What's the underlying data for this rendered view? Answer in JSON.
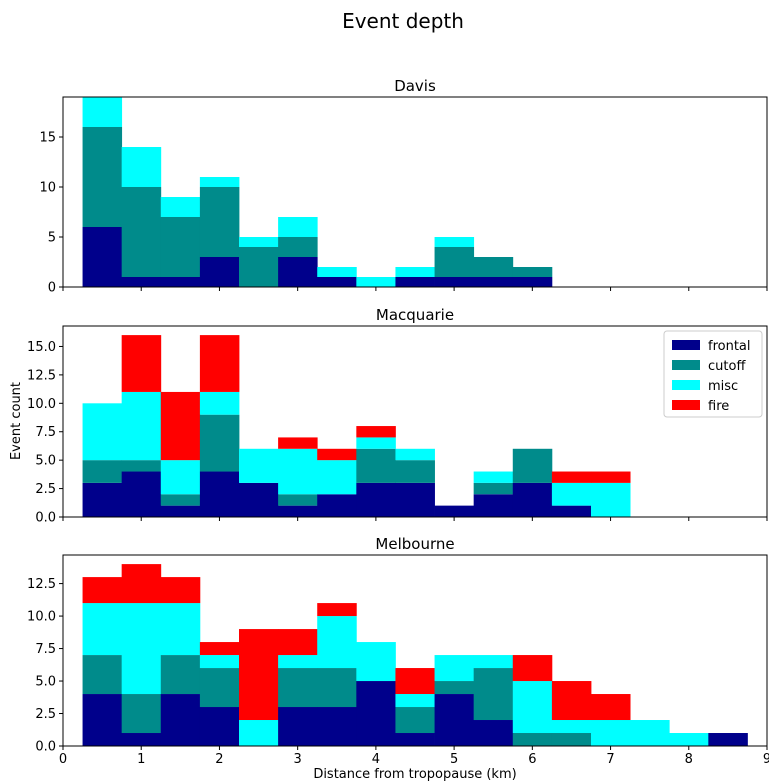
{
  "figure": {
    "suptitle": "Event depth",
    "xlabel": "Distance from tropopause (km)",
    "ylabel": "Event count"
  },
  "colors": {
    "frontal": "#00008b",
    "cutoff": "#008b8b",
    "misc": "#00ffff",
    "fire": "#ff0000"
  },
  "chart_data": [
    {
      "type": "bar",
      "stacked": true,
      "title": "Davis",
      "bin_edges": [
        0.25,
        0.75,
        1.25,
        1.75,
        2.25,
        2.75,
        3.25,
        3.75,
        4.25,
        4.75,
        5.25,
        5.75,
        6.25
      ],
      "xlim": [
        0,
        9
      ],
      "ylim": [
        0,
        19
      ],
      "xticks": [
        0,
        1,
        2,
        3,
        4,
        5,
        6,
        7,
        8,
        9
      ],
      "xtick_labels": [],
      "yticks": [
        0,
        5,
        10,
        15
      ],
      "ytick_labels": [
        "0",
        "5",
        "10",
        "15"
      ],
      "legend": false,
      "series": [
        {
          "key": "frontal",
          "values": [
            6,
            1,
            1,
            3,
            0,
            3,
            1,
            0,
            1,
            1,
            1,
            1
          ]
        },
        {
          "key": "cutoff",
          "values": [
            10,
            9,
            6,
            7,
            4,
            2,
            0,
            0,
            0,
            3,
            2,
            1
          ]
        },
        {
          "key": "misc",
          "values": [
            3,
            4,
            2,
            1,
            1,
            2,
            1,
            1,
            1,
            1,
            0,
            0
          ]
        },
        {
          "key": "fire",
          "values": [
            0,
            0,
            0,
            0,
            0,
            0,
            0,
            0,
            0,
            0,
            0,
            0
          ]
        }
      ]
    },
    {
      "type": "bar",
      "stacked": true,
      "title": "Macquarie",
      "bin_edges": [
        0.25,
        0.75,
        1.25,
        1.75,
        2.25,
        2.75,
        3.25,
        3.75,
        4.25,
        4.75,
        5.25,
        5.75,
        6.25,
        6.75,
        7.25
      ],
      "xlim": [
        0,
        9
      ],
      "ylim": [
        0,
        16.8
      ],
      "xticks": [
        0,
        1,
        2,
        3,
        4,
        5,
        6,
        7,
        8,
        9
      ],
      "xtick_labels": [],
      "yticks": [
        0,
        2.5,
        5,
        7.5,
        10,
        12.5,
        15
      ],
      "ytick_labels": [
        "0.0",
        "2.5",
        "5.0",
        "7.5",
        "10.0",
        "12.5",
        "15.0"
      ],
      "legend": true,
      "legend_position": "top-right",
      "series": [
        {
          "key": "frontal",
          "name": "frontal",
          "values": [
            3,
            4,
            1,
            4,
            3,
            1,
            2,
            3,
            3,
            1,
            2,
            3,
            1,
            0
          ]
        },
        {
          "key": "cutoff",
          "name": "cutoff",
          "values": [
            2,
            1,
            1,
            5,
            0,
            1,
            0,
            3,
            2,
            0,
            1,
            3,
            0,
            0
          ]
        },
        {
          "key": "misc",
          "name": "misc",
          "values": [
            5,
            6,
            3,
            2,
            3,
            4,
            3,
            1,
            1,
            0,
            1,
            0,
            2,
            3
          ]
        },
        {
          "key": "fire",
          "name": "fire",
          "values": [
            0,
            5,
            6,
            5,
            0,
            1,
            1,
            1,
            0,
            0,
            0,
            0,
            1,
            1
          ]
        }
      ]
    },
    {
      "type": "bar",
      "stacked": true,
      "title": "Melbourne",
      "bin_edges": [
        0.25,
        0.75,
        1.25,
        1.75,
        2.25,
        2.75,
        3.25,
        3.75,
        4.25,
        4.75,
        5.25,
        5.75,
        6.25,
        6.75,
        7.25,
        7.75,
        8.25,
        8.75
      ],
      "xlim": [
        0,
        9
      ],
      "ylim": [
        0,
        14.7
      ],
      "xticks": [
        0,
        1,
        2,
        3,
        4,
        5,
        6,
        7,
        8,
        9
      ],
      "xtick_labels": [
        "0",
        "1",
        "2",
        "3",
        "4",
        "5",
        "6",
        "7",
        "8",
        "9"
      ],
      "yticks": [
        0,
        2.5,
        5,
        7.5,
        10,
        12.5
      ],
      "ytick_labels": [
        "0.0",
        "2.5",
        "5.0",
        "7.5",
        "10.0",
        "12.5"
      ],
      "legend": false,
      "series": [
        {
          "key": "frontal",
          "values": [
            4,
            1,
            4,
            3,
            0,
            3,
            3,
            5,
            1,
            4,
            2,
            0,
            0,
            0,
            0,
            0,
            1
          ]
        },
        {
          "key": "cutoff",
          "values": [
            3,
            3,
            3,
            3,
            0,
            3,
            3,
            0,
            2,
            1,
            4,
            1,
            1,
            0,
            0,
            0,
            0
          ]
        },
        {
          "key": "misc",
          "values": [
            4,
            7,
            4,
            1,
            2,
            1,
            4,
            3,
            1,
            2,
            1,
            4,
            1,
            2,
            2,
            1,
            0
          ]
        },
        {
          "key": "fire",
          "values": [
            2,
            3,
            2,
            1,
            7,
            2,
            1,
            0,
            2,
            0,
            0,
            2,
            3,
            2,
            0,
            0,
            0
          ]
        }
      ]
    }
  ]
}
